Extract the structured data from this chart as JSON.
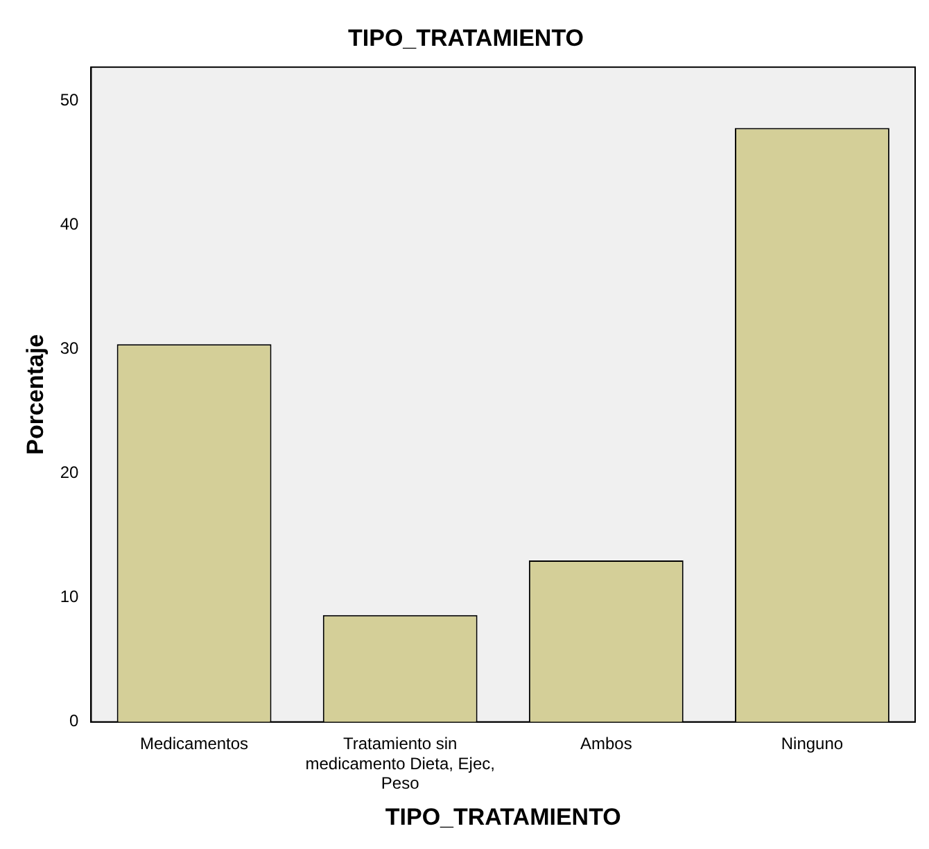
{
  "chart_data": {
    "type": "bar",
    "title": "TIPO_TRATAMIENTO",
    "xlabel": "TIPO_TRATAMIENTO",
    "ylabel": "Porcentaje",
    "categories": [
      "Medicamentos",
      "Tratamiento sin medicamento Dieta, Ejec, Peso",
      "Ambos",
      "Ninguno"
    ],
    "values": [
      30.4,
      8.6,
      13.0,
      47.8
    ],
    "color": "#d4cf98",
    "ylim": [
      0,
      52.7
    ],
    "yticks": [
      0,
      10,
      20,
      30,
      40,
      50
    ],
    "grid": false,
    "legend": false
  }
}
